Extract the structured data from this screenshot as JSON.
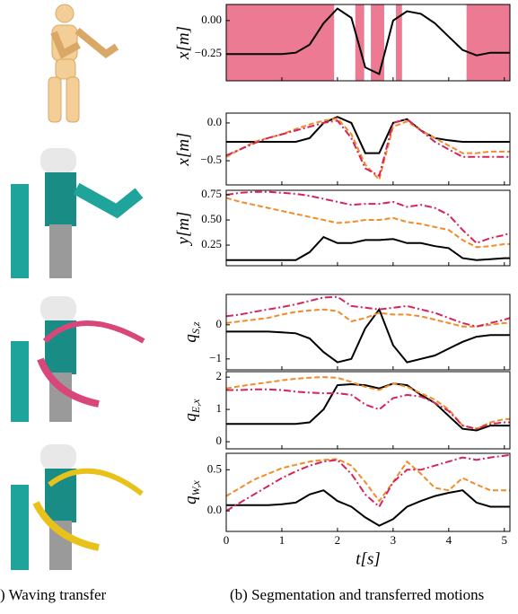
{
  "chart_data": [
    {
      "type": "line",
      "ylabel": "x[m]",
      "ylim": [
        -0.45,
        0.12
      ],
      "yticks": [
        {
          "value": 0,
          "label": "0.00"
        },
        {
          "value": -0.25,
          "label": "−0.25"
        }
      ],
      "xlim": [
        0,
        5.1
      ],
      "xticks": [
        0,
        1,
        2,
        3,
        4,
        5
      ],
      "segments": [
        [
          0,
          1.94
        ],
        [
          2.32,
          2.48
        ],
        [
          2.6,
          2.84
        ],
        [
          3.05,
          3.16
        ],
        [
          4.32,
          5.1
        ]
      ],
      "segment_color": "#ec7a92",
      "x": [
        0,
        0.25,
        0.5,
        0.75,
        1,
        1.25,
        1.5,
        1.75,
        2,
        2.25,
        2.5,
        2.75,
        3,
        3.25,
        3.5,
        3.75,
        4,
        4.25,
        4.5,
        4.75,
        5,
        5.1
      ],
      "series": [
        {
          "color": "#000000",
          "values": [
            -0.25,
            -0.25,
            -0.25,
            -0.25,
            -0.25,
            -0.24,
            -0.18,
            -0.02,
            0.09,
            0.02,
            -0.35,
            -0.4,
            0.0,
            0.07,
            0.05,
            -0.02,
            -0.12,
            -0.22,
            -0.26,
            -0.24,
            -0.24,
            -0.24
          ]
        }
      ]
    },
    {
      "type": "line",
      "ylabel": "x[m]",
      "ylim": [
        -0.82,
        0.13
      ],
      "yticks": [
        {
          "value": 0,
          "label": "0.0"
        },
        {
          "value": -0.5,
          "label": "−0.5"
        }
      ],
      "xlim": [
        0,
        5.1
      ],
      "xticks": [
        0,
        1,
        2,
        3,
        4,
        5
      ],
      "x": [
        0,
        0.25,
        0.5,
        0.75,
        1,
        1.25,
        1.5,
        1.75,
        2,
        2.25,
        2.5,
        2.75,
        3,
        3.25,
        3.5,
        3.75,
        4,
        4.25,
        4.5,
        4.75,
        5,
        5.1
      ],
      "series": [
        {
          "color": "#000000",
          "values": [
            -0.25,
            -0.25,
            -0.25,
            -0.25,
            -0.25,
            -0.25,
            -0.2,
            0.0,
            0.08,
            0.0,
            -0.4,
            -0.4,
            0.0,
            0.05,
            -0.1,
            -0.2,
            -0.23,
            -0.25,
            -0.25,
            -0.25,
            -0.25,
            -0.25
          ]
        },
        {
          "color": "#f28c28",
          "dash": "6,3",
          "values": [
            -0.45,
            -0.35,
            -0.25,
            -0.2,
            -0.15,
            -0.08,
            -0.02,
            0.03,
            0.06,
            -0.15,
            -0.55,
            -0.75,
            -0.05,
            0.02,
            -0.1,
            -0.2,
            -0.3,
            -0.4,
            -0.4,
            -0.38,
            -0.38,
            -0.38
          ]
        },
        {
          "color": "#d6245a",
          "dash": "8,3,2,3",
          "values": [
            -0.43,
            -0.35,
            -0.27,
            -0.2,
            -0.15,
            -0.1,
            -0.05,
            0.0,
            0.03,
            -0.2,
            -0.6,
            -0.7,
            0.0,
            0.05,
            -0.1,
            -0.25,
            -0.35,
            -0.45,
            -0.45,
            -0.45,
            -0.45,
            -0.45
          ]
        }
      ]
    },
    {
      "type": "line",
      "ylabel": "y[m]",
      "ylim": [
        0.045,
        0.795
      ],
      "yticks": [
        0.75,
        {
          "value": 0.5,
          "label": "0.50"
        },
        0.25
      ],
      "xlim": [
        0,
        5.1
      ],
      "xticks": [
        0,
        1,
        2,
        3,
        4,
        5
      ],
      "x": [
        0,
        0.25,
        0.5,
        0.75,
        1,
        1.25,
        1.5,
        1.75,
        2,
        2.25,
        2.5,
        2.75,
        3,
        3.25,
        3.5,
        3.75,
        4,
        4.25,
        4.5,
        4.75,
        5,
        5.1
      ],
      "series": [
        {
          "color": "#000000",
          "values": [
            0.1,
            0.1,
            0.1,
            0.1,
            0.1,
            0.1,
            0.18,
            0.33,
            0.27,
            0.27,
            0.3,
            0.3,
            0.31,
            0.27,
            0.27,
            0.24,
            0.22,
            0.12,
            0.1,
            0.11,
            0.12,
            0.12
          ]
        },
        {
          "color": "#f28c28",
          "dash": "6,3",
          "values": [
            0.72,
            0.68,
            0.65,
            0.62,
            0.59,
            0.56,
            0.53,
            0.5,
            0.47,
            0.48,
            0.5,
            0.5,
            0.52,
            0.48,
            0.46,
            0.43,
            0.4,
            0.3,
            0.23,
            0.24,
            0.26,
            0.26
          ]
        },
        {
          "color": "#d6245a",
          "dash": "8,3,2,3",
          "values": [
            0.75,
            0.77,
            0.78,
            0.78,
            0.77,
            0.76,
            0.74,
            0.71,
            0.68,
            0.65,
            0.66,
            0.66,
            0.68,
            0.63,
            0.65,
            0.62,
            0.55,
            0.4,
            0.27,
            0.32,
            0.35,
            0.37
          ]
        }
      ]
    },
    {
      "type": "line",
      "ylabel": "q",
      "ylabel_sub": "S,z",
      "ylim": [
        -1.32,
        0.89
      ],
      "yticks": [
        0,
        {
          "value": -1,
          "label": "−1"
        }
      ],
      "xlim": [
        0,
        5.1
      ],
      "xticks": [
        0,
        1,
        2,
        3,
        4,
        5
      ],
      "x": [
        0,
        0.25,
        0.5,
        0.75,
        1,
        1.25,
        1.5,
        1.75,
        2,
        2.25,
        2.5,
        2.75,
        3,
        3.25,
        3.5,
        3.75,
        4,
        4.25,
        4.5,
        4.75,
        5,
        5.1
      ],
      "series": [
        {
          "color": "#000000",
          "values": [
            -0.2,
            -0.2,
            -0.2,
            -0.2,
            -0.22,
            -0.25,
            -0.4,
            -0.8,
            -1.1,
            -1.0,
            -0.1,
            0.45,
            -0.6,
            -1.1,
            -1.0,
            -0.9,
            -0.7,
            -0.5,
            -0.35,
            -0.3,
            -0.3,
            -0.3
          ]
        },
        {
          "color": "#f28c28",
          "dash": "6,3",
          "values": [
            0.05,
            0.1,
            0.15,
            0.2,
            0.3,
            0.38,
            0.42,
            0.45,
            0.4,
            0.1,
            0.2,
            0.35,
            0.3,
            0.3,
            0.25,
            0.15,
            0.05,
            -0.05,
            -0.05,
            0.0,
            0.05,
            0.05
          ]
        },
        {
          "color": "#d6245a",
          "dash": "8,3,2,3",
          "values": [
            0.25,
            0.3,
            0.38,
            0.45,
            0.52,
            0.6,
            0.7,
            0.8,
            0.82,
            0.55,
            0.5,
            0.45,
            0.5,
            0.55,
            0.45,
            0.35,
            0.2,
            0.05,
            -0.05,
            0.05,
            0.15,
            0.2
          ]
        }
      ]
    },
    {
      "type": "line",
      "ylabel": "q",
      "ylabel_sub": "E,x",
      "ylim": [
        -0.22,
        2.17
      ],
      "yticks": [
        2,
        1,
        0
      ],
      "xlim": [
        0,
        5.1
      ],
      "xticks": [
        0,
        1,
        2,
        3,
        4,
        5
      ],
      "x": [
        0,
        0.25,
        0.5,
        0.75,
        1,
        1.25,
        1.5,
        1.75,
        2,
        2.25,
        2.5,
        2.75,
        3,
        3.25,
        3.5,
        3.75,
        4,
        4.25,
        4.5,
        4.75,
        5,
        5.1
      ],
      "series": [
        {
          "color": "#000000",
          "values": [
            0.55,
            0.55,
            0.55,
            0.55,
            0.55,
            0.55,
            0.6,
            1.0,
            1.75,
            1.78,
            1.75,
            1.65,
            1.8,
            1.75,
            1.45,
            1.2,
            0.8,
            0.4,
            0.35,
            0.5,
            0.5,
            0.5
          ]
        },
        {
          "color": "#f28c28",
          "dash": "6,3",
          "values": [
            1.65,
            1.72,
            1.78,
            1.84,
            1.9,
            1.95,
            1.98,
            2.0,
            1.98,
            1.85,
            1.7,
            1.6,
            1.8,
            1.7,
            1.5,
            1.3,
            1.0,
            0.5,
            0.4,
            0.6,
            0.7,
            0.7
          ]
        },
        {
          "color": "#d6245a",
          "dash": "8,3,2,3",
          "values": [
            1.6,
            1.6,
            1.62,
            1.62,
            1.6,
            1.55,
            1.52,
            1.5,
            1.5,
            1.45,
            1.15,
            1.0,
            1.35,
            1.45,
            1.4,
            1.2,
            0.95,
            0.5,
            0.4,
            0.55,
            0.6,
            0.6
          ]
        }
      ]
    },
    {
      "type": "line",
      "ylabel": "q",
      "ylabel_sub": "W,x",
      "ylim": [
        -0.25,
        0.7
      ],
      "yticks": [
        0.5,
        {
          "value": 0,
          "label": "0.0"
        }
      ],
      "xlim": [
        0,
        5.1
      ],
      "xticks": [
        0,
        1,
        2,
        3,
        4,
        5
      ],
      "xlabel": "t[s]",
      "x": [
        0,
        0.25,
        0.5,
        0.75,
        1,
        1.25,
        1.5,
        1.75,
        2,
        2.25,
        2.5,
        2.75,
        3,
        3.25,
        3.5,
        3.75,
        4,
        4.25,
        4.5,
        4.75,
        5,
        5.1
      ],
      "series": [
        {
          "color": "#000000",
          "values": [
            0.07,
            0.07,
            0.07,
            0.07,
            0.08,
            0.1,
            0.2,
            0.25,
            0.12,
            0.05,
            -0.08,
            -0.18,
            -0.1,
            0.05,
            0.12,
            0.18,
            0.22,
            0.25,
            0.1,
            0.05,
            0.05,
            0.05
          ]
        },
        {
          "color": "#f28c28",
          "dash": "6,3",
          "values": [
            0.18,
            0.28,
            0.38,
            0.45,
            0.52,
            0.56,
            0.6,
            0.62,
            0.63,
            0.55,
            0.35,
            0.12,
            0.35,
            0.6,
            0.45,
            0.28,
            0.25,
            0.4,
            0.32,
            0.25,
            0.25,
            0.25
          ]
        },
        {
          "color": "#d6245a",
          "dash": "8,3,2,3",
          "values": [
            0.0,
            0.1,
            0.2,
            0.3,
            0.4,
            0.48,
            0.55,
            0.6,
            0.62,
            0.45,
            0.2,
            0.05,
            0.35,
            0.5,
            0.5,
            0.55,
            0.6,
            0.65,
            0.62,
            0.65,
            0.67,
            0.68
          ]
        }
      ]
    }
  ],
  "captions": [
    ") Waving transfer",
    "(b) Segmentation and transferred motions"
  ]
}
